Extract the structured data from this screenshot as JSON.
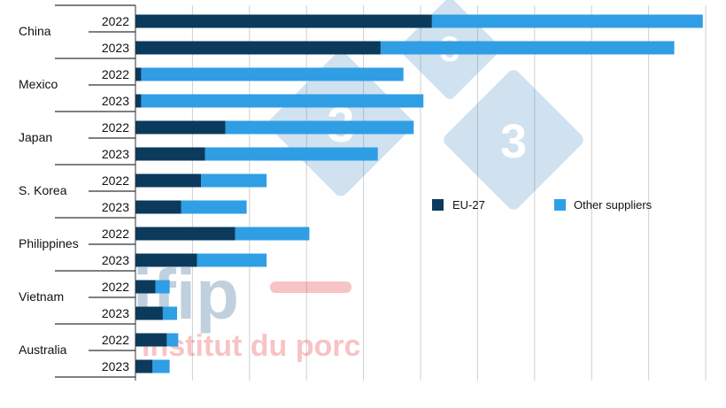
{
  "chart_data": {
    "type": "bar",
    "orientation": "horizontal",
    "stacked": true,
    "title": "",
    "xlabel": "",
    "ylabel": "",
    "xlim": [
      0,
      100
    ],
    "groups": [
      {
        "name": "China",
        "rows": [
          {
            "year": "2022",
            "eu": 52.0,
            "other": 47.5
          },
          {
            "year": "2023",
            "eu": 43.0,
            "other": 51.5
          }
        ]
      },
      {
        "name": "Mexico",
        "rows": [
          {
            "year": "2022",
            "eu": 1.0,
            "other": 46.0
          },
          {
            "year": "2023",
            "eu": 1.0,
            "other": 49.5
          }
        ]
      },
      {
        "name": "Japan",
        "rows": [
          {
            "year": "2022",
            "eu": 15.8,
            "other": 33.0
          },
          {
            "year": "2023",
            "eu": 12.2,
            "other": 30.3
          }
        ]
      },
      {
        "name": "S. Korea",
        "rows": [
          {
            "year": "2022",
            "eu": 11.5,
            "other": 11.5
          },
          {
            "year": "2023",
            "eu": 8.0,
            "other": 11.5
          }
        ]
      },
      {
        "name": "Philippines",
        "rows": [
          {
            "year": "2022",
            "eu": 17.5,
            "other": 13.0
          },
          {
            "year": "2023",
            "eu": 10.8,
            "other": 12.2
          }
        ]
      },
      {
        "name": "Vietnam",
        "rows": [
          {
            "year": "2022",
            "eu": 3.5,
            "other": 2.5
          },
          {
            "year": "2023",
            "eu": 4.8,
            "other": 2.5
          }
        ]
      },
      {
        "name": "Australia",
        "rows": [
          {
            "year": "2022",
            "eu": 5.5,
            "other": 2.0
          },
          {
            "year": "2023",
            "eu": 3.0,
            "other": 3.0
          }
        ]
      }
    ],
    "series": [
      {
        "name": "EU-27",
        "key": "eu"
      },
      {
        "name": "Other suppliers",
        "key": "other"
      }
    ],
    "colors": {
      "eu": "#0b3a5c",
      "other": "#2f9ee5",
      "grid": "#d0d0d0",
      "axis": "#333333"
    },
    "grid": true,
    "legend_position": "center-right"
  },
  "watermark": {
    "brand": "ifip",
    "tagline": "institut du porc",
    "badge_digit": "3"
  }
}
